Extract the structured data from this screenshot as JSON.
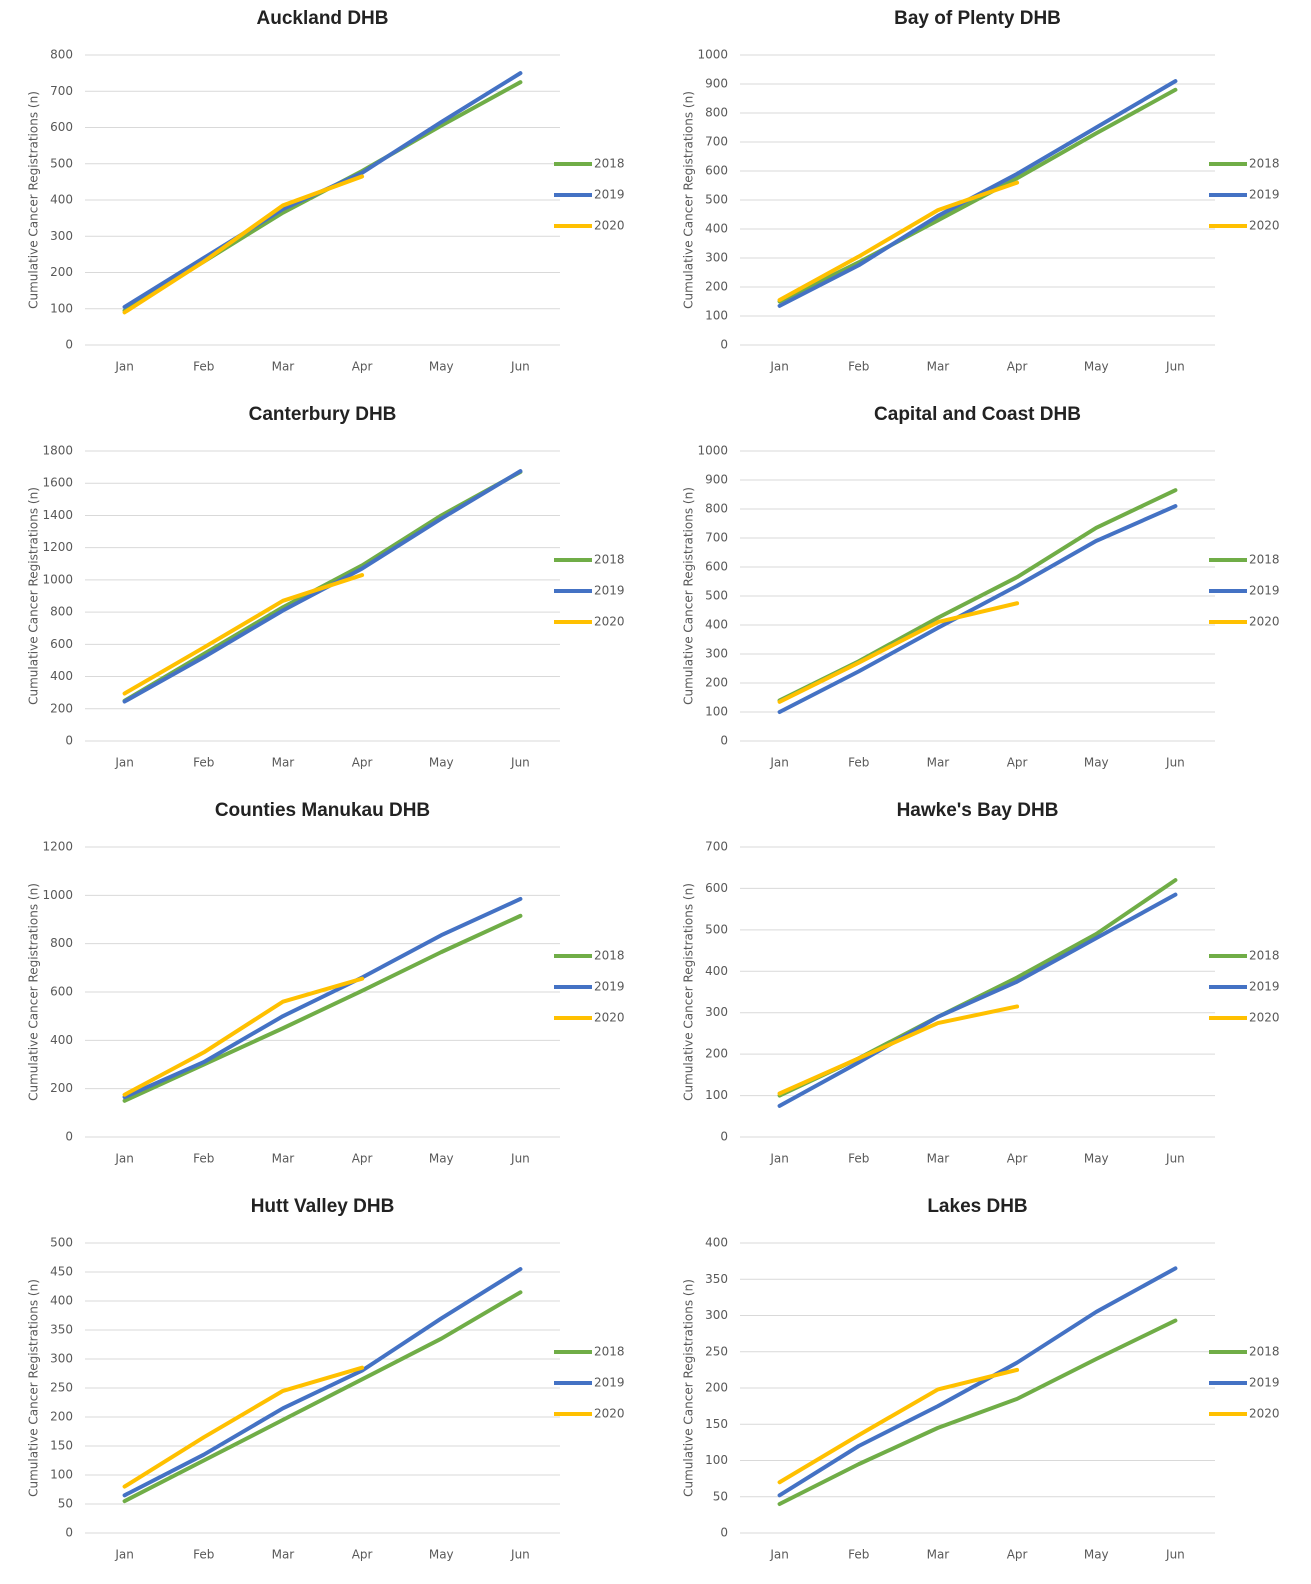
{
  "chart_data": [
    {
      "type": "line",
      "title": "Auckland DHB",
      "ylabel": "Cumulative Cancer Registrations (n)",
      "categories": [
        "Jan",
        "Feb",
        "Mar",
        "Apr",
        "May",
        "Jun"
      ],
      "ylim": [
        0,
        800
      ],
      "yticks": [
        0,
        100,
        200,
        300,
        400,
        500,
        600,
        700,
        800
      ],
      "grid": true,
      "legend": "right",
      "series": [
        {
          "name": "2018",
          "color": "#70ad47",
          "values": [
            95,
            230,
            365,
            480,
            605,
            725
          ]
        },
        {
          "name": "2019",
          "color": "#4472c4",
          "values": [
            105,
            240,
            375,
            475,
            615,
            750
          ]
        },
        {
          "name": "2020",
          "color": "#ffc000",
          "values": [
            90,
            230,
            385,
            465,
            null,
            null
          ]
        }
      ]
    },
    {
      "type": "line",
      "title": "Bay of Plenty DHB",
      "ylabel": "Cumulative Cancer Registrations (n)",
      "categories": [
        "Jan",
        "Feb",
        "Mar",
        "Apr",
        "May",
        "Jun"
      ],
      "ylim": [
        0,
        1000
      ],
      "yticks": [
        0,
        100,
        200,
        300,
        400,
        500,
        600,
        700,
        800,
        900,
        1000
      ],
      "grid": true,
      "legend": "right",
      "series": [
        {
          "name": "2018",
          "color": "#70ad47",
          "values": [
            150,
            285,
            430,
            575,
            730,
            880
          ]
        },
        {
          "name": "2019",
          "color": "#4472c4",
          "values": [
            135,
            275,
            445,
            590,
            750,
            910
          ]
        },
        {
          "name": "2020",
          "color": "#ffc000",
          "values": [
            155,
            305,
            465,
            560,
            null,
            null
          ]
        }
      ]
    },
    {
      "type": "line",
      "title": "Canterbury DHB",
      "ylabel": "Cumulative Cancer Registrations (n)",
      "categories": [
        "Jan",
        "Feb",
        "Mar",
        "Apr",
        "May",
        "Jun"
      ],
      "ylim": [
        0,
        1800
      ],
      "yticks": [
        0,
        200,
        400,
        600,
        800,
        1000,
        1200,
        1400,
        1600,
        1800
      ],
      "grid": true,
      "legend": "right",
      "series": [
        {
          "name": "2018",
          "color": "#70ad47",
          "values": [
            250,
            540,
            830,
            1090,
            1400,
            1670
          ]
        },
        {
          "name": "2019",
          "color": "#4472c4",
          "values": [
            245,
            520,
            810,
            1070,
            1380,
            1675
          ]
        },
        {
          "name": "2020",
          "color": "#ffc000",
          "values": [
            295,
            580,
            870,
            1030,
            null,
            null
          ]
        }
      ]
    },
    {
      "type": "line",
      "title": "Capital and Coast DHB",
      "ylabel": "Cumulative Cancer Registrations (n)",
      "categories": [
        "Jan",
        "Feb",
        "Mar",
        "Apr",
        "May",
        "Jun"
      ],
      "ylim": [
        0,
        1000
      ],
      "yticks": [
        0,
        100,
        200,
        300,
        400,
        500,
        600,
        700,
        800,
        900,
        1000
      ],
      "grid": true,
      "legend": "right",
      "series": [
        {
          "name": "2018",
          "color": "#70ad47",
          "values": [
            140,
            275,
            425,
            565,
            735,
            865
          ]
        },
        {
          "name": "2019",
          "color": "#4472c4",
          "values": [
            100,
            240,
            390,
            535,
            690,
            810
          ]
        },
        {
          "name": "2020",
          "color": "#ffc000",
          "values": [
            135,
            270,
            410,
            475,
            null,
            null
          ]
        }
      ]
    },
    {
      "type": "line",
      "title": "Counties Manukau DHB",
      "ylabel": "Cumulative Cancer Registrations (n)",
      "categories": [
        "Jan",
        "Feb",
        "Mar",
        "Apr",
        "May",
        "Jun"
      ],
      "ylim": [
        0,
        1200
      ],
      "yticks": [
        0,
        200,
        400,
        600,
        800,
        1000,
        1200
      ],
      "grid": true,
      "legend": "right",
      "series": [
        {
          "name": "2018",
          "color": "#70ad47",
          "values": [
            150,
            300,
            450,
            605,
            765,
            915
          ]
        },
        {
          "name": "2019",
          "color": "#4472c4",
          "values": [
            165,
            310,
            500,
            660,
            835,
            985
          ]
        },
        {
          "name": "2020",
          "color": "#ffc000",
          "values": [
            175,
            350,
            560,
            655,
            null,
            null
          ]
        }
      ]
    },
    {
      "type": "line",
      "title": "Hawke's Bay DHB",
      "ylabel": "Cumulative Cancer Registrations (n)",
      "categories": [
        "Jan",
        "Feb",
        "Mar",
        "Apr",
        "May",
        "Jun"
      ],
      "ylim": [
        0,
        700
      ],
      "yticks": [
        0,
        100,
        200,
        300,
        400,
        500,
        600,
        700
      ],
      "grid": true,
      "legend": "right",
      "series": [
        {
          "name": "2018",
          "color": "#70ad47",
          "values": [
            100,
            190,
            290,
            385,
            490,
            620
          ]
        },
        {
          "name": "2019",
          "color": "#4472c4",
          "values": [
            75,
            180,
            290,
            375,
            480,
            585
          ]
        },
        {
          "name": "2020",
          "color": "#ffc000",
          "values": [
            105,
            190,
            275,
            315,
            null,
            null
          ]
        }
      ]
    },
    {
      "type": "line",
      "title": "Hutt Valley DHB",
      "ylabel": "Cumulative Cancer Registrations (n)",
      "categories": [
        "Jan",
        "Feb",
        "Mar",
        "Apr",
        "May",
        "Jun"
      ],
      "ylim": [
        0,
        500
      ],
      "yticks": [
        0,
        50,
        100,
        150,
        200,
        250,
        300,
        350,
        400,
        450,
        500
      ],
      "grid": true,
      "legend": "right",
      "series": [
        {
          "name": "2018",
          "color": "#70ad47",
          "values": [
            55,
            125,
            195,
            265,
            335,
            415
          ]
        },
        {
          "name": "2019",
          "color": "#4472c4",
          "values": [
            65,
            135,
            215,
            280,
            370,
            455
          ]
        },
        {
          "name": "2020",
          "color": "#ffc000",
          "values": [
            80,
            165,
            245,
            285,
            null,
            null
          ]
        }
      ]
    },
    {
      "type": "line",
      "title": "Lakes DHB",
      "ylabel": "Cumulative Cancer Registrations (n)",
      "categories": [
        "Jan",
        "Feb",
        "Mar",
        "Apr",
        "May",
        "Jun"
      ],
      "ylim": [
        0,
        400
      ],
      "yticks": [
        0,
        50,
        100,
        150,
        200,
        250,
        300,
        350,
        400
      ],
      "grid": true,
      "legend": "right",
      "series": [
        {
          "name": "2018",
          "color": "#70ad47",
          "values": [
            40,
            95,
            145,
            185,
            240,
            293
          ]
        },
        {
          "name": "2019",
          "color": "#4472c4",
          "values": [
            52,
            120,
            175,
            235,
            305,
            365
          ]
        },
        {
          "name": "2020",
          "color": "#ffc000",
          "values": [
            70,
            135,
            198,
            225,
            null,
            null
          ]
        }
      ]
    }
  ]
}
